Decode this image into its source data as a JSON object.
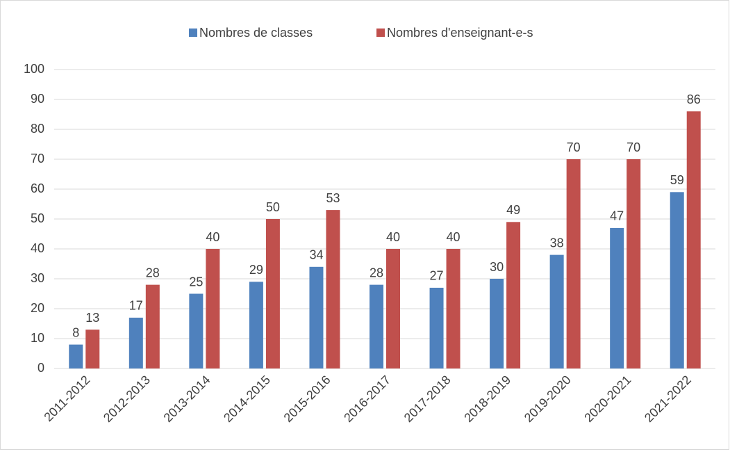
{
  "chart_data": {
    "type": "bar",
    "categories": [
      "2011-2012",
      "2012-2013",
      "2013-2014",
      "2014-2015",
      "2015-2016",
      "2016-2017",
      "2017-2018",
      "2018-2019",
      "2019-2020",
      "2020-2021",
      "2021-2022"
    ],
    "series": [
      {
        "name": "Nombres de classes",
        "color": "#4f81bd",
        "values": [
          8,
          17,
          25,
          29,
          34,
          28,
          27,
          30,
          38,
          47,
          59
        ]
      },
      {
        "name": "Nombres d'enseignant-e-s",
        "color": "#c0504d",
        "values": [
          13,
          28,
          40,
          50,
          53,
          40,
          40,
          49,
          70,
          70,
          86
        ]
      }
    ],
    "ylim": [
      0,
      100
    ],
    "yticks": [
      0,
      10,
      20,
      30,
      40,
      50,
      60,
      70,
      80,
      90,
      100
    ],
    "grid": true,
    "legend": "top"
  }
}
